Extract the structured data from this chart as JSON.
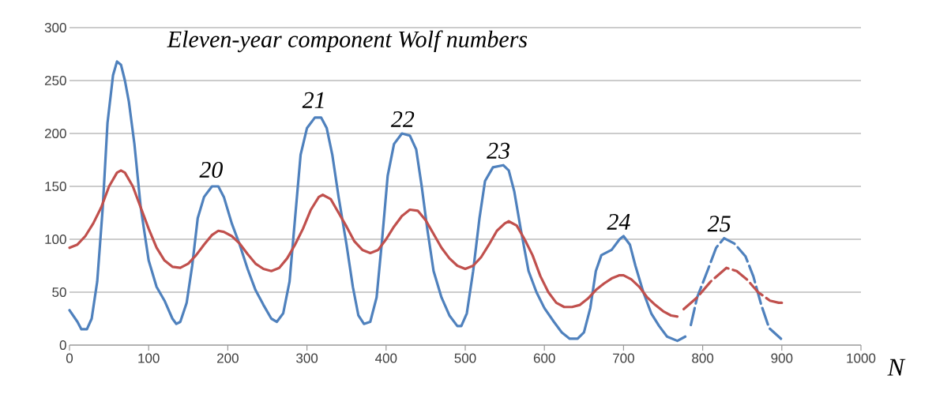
{
  "chart_data": {
    "type": "line",
    "title": "Eleven-year component  Wolf numbers",
    "xlabel": "N",
    "xlim": [
      0,
      1000
    ],
    "xticks": [
      0,
      100,
      200,
      300,
      400,
      500,
      600,
      700,
      800,
      900,
      1000
    ],
    "ylim": [
      0,
      300
    ],
    "yticks": [
      0,
      50,
      100,
      150,
      200,
      250,
      300
    ],
    "grid": "y",
    "marker": "none",
    "series": [
      {
        "color": "#4f81bd",
        "line_style": "solid",
        "x": [
          0,
          10,
          15,
          22,
          28,
          35,
          42,
          48,
          55,
          60,
          65,
          70,
          75,
          82,
          90,
          100,
          110,
          120,
          130,
          135,
          140,
          148,
          155,
          162,
          170,
          180,
          188,
          195,
          205,
          215,
          225,
          235,
          245,
          255,
          262,
          270,
          278,
          285,
          292,
          300,
          310,
          318,
          325,
          332,
          340,
          350,
          358,
          365,
          372,
          380,
          388,
          395,
          402,
          410,
          420,
          430,
          438,
          445,
          452,
          460,
          470,
          480,
          490,
          495,
          502,
          510,
          518,
          525,
          535,
          548,
          555,
          562,
          570,
          580,
          590,
          600,
          612,
          622,
          632,
          642,
          650,
          658,
          665,
          672,
          685,
          695,
          700,
          708,
          715,
          725,
          735,
          745,
          755,
          768,
          778
        ],
        "values": [
          33,
          22,
          15,
          15,
          25,
          60,
          130,
          210,
          255,
          268,
          265,
          250,
          230,
          190,
          130,
          80,
          55,
          42,
          25,
          20,
          22,
          40,
          75,
          120,
          140,
          150,
          150,
          140,
          115,
          95,
          72,
          52,
          38,
          25,
          22,
          30,
          60,
          120,
          180,
          205,
          215,
          215,
          205,
          180,
          140,
          95,
          55,
          28,
          20,
          22,
          45,
          100,
          160,
          190,
          200,
          198,
          185,
          150,
          110,
          70,
          45,
          28,
          18,
          18,
          30,
          70,
          120,
          155,
          168,
          170,
          165,
          145,
          110,
          70,
          50,
          35,
          22,
          12,
          6,
          6,
          12,
          35,
          70,
          85,
          90,
          100,
          103,
          95,
          75,
          50,
          30,
          18,
          8,
          4,
          8
        ]
      },
      {
        "color": "#4f81bd",
        "line_style": "dashed",
        "x": [
          785,
          793,
          807,
          817,
          827,
          840,
          854,
          864,
          874,
          884,
          899
        ],
        "values": [
          19,
          45,
          72,
          92,
          101,
          96,
          84,
          65,
          38,
          16,
          6
        ]
      },
      {
        "color": "#c0504d",
        "line_style": "solid",
        "x": [
          0,
          10,
          20,
          30,
          40,
          50,
          60,
          65,
          70,
          80,
          90,
          100,
          110,
          120,
          130,
          140,
          150,
          160,
          170,
          180,
          188,
          195,
          205,
          215,
          225,
          235,
          245,
          255,
          265,
          275,
          285,
          295,
          305,
          315,
          320,
          330,
          340,
          350,
          360,
          370,
          380,
          390,
          400,
          410,
          420,
          430,
          440,
          450,
          460,
          470,
          480,
          490,
          500,
          510,
          520,
          530,
          540,
          550,
          555,
          565,
          575,
          585,
          595,
          605,
          615,
          625,
          635,
          645,
          655,
          665,
          675,
          685,
          695,
          700,
          710,
          720,
          730,
          740,
          750,
          760,
          768
        ],
        "values": [
          92,
          95,
          103,
          115,
          130,
          150,
          163,
          165,
          163,
          150,
          130,
          110,
          92,
          80,
          74,
          73,
          77,
          85,
          95,
          104,
          108,
          107,
          103,
          96,
          86,
          77,
          72,
          70,
          73,
          82,
          95,
          110,
          128,
          140,
          142,
          138,
          125,
          112,
          98,
          90,
          87,
          90,
          100,
          112,
          122,
          128,
          127,
          118,
          105,
          92,
          82,
          75,
          72,
          75,
          83,
          95,
          108,
          115,
          117,
          113,
          100,
          85,
          65,
          50,
          40,
          36,
          36,
          38,
          44,
          52,
          58,
          63,
          66,
          66,
          62,
          55,
          45,
          38,
          32,
          28,
          27
        ]
      },
      {
        "color": "#c0504d",
        "line_style": "dashed",
        "x": [
          776,
          793,
          810,
          830,
          843,
          856,
          870,
          885,
          896,
          900
        ],
        "values": [
          34,
          45,
          60,
          73,
          70,
          62,
          50,
          42,
          40,
          40
        ]
      }
    ],
    "annotations": [
      {
        "text": "20",
        "x": 185,
        "y": 152
      },
      {
        "text": "21",
        "x": 315,
        "y": 218
      },
      {
        "text": "22",
        "x": 427,
        "y": 200
      },
      {
        "text": "23",
        "x": 548,
        "y": 170
      },
      {
        "text": "24",
        "x": 700,
        "y": 103
      },
      {
        "text": "25",
        "x": 827,
        "y": 101
      }
    ]
  }
}
